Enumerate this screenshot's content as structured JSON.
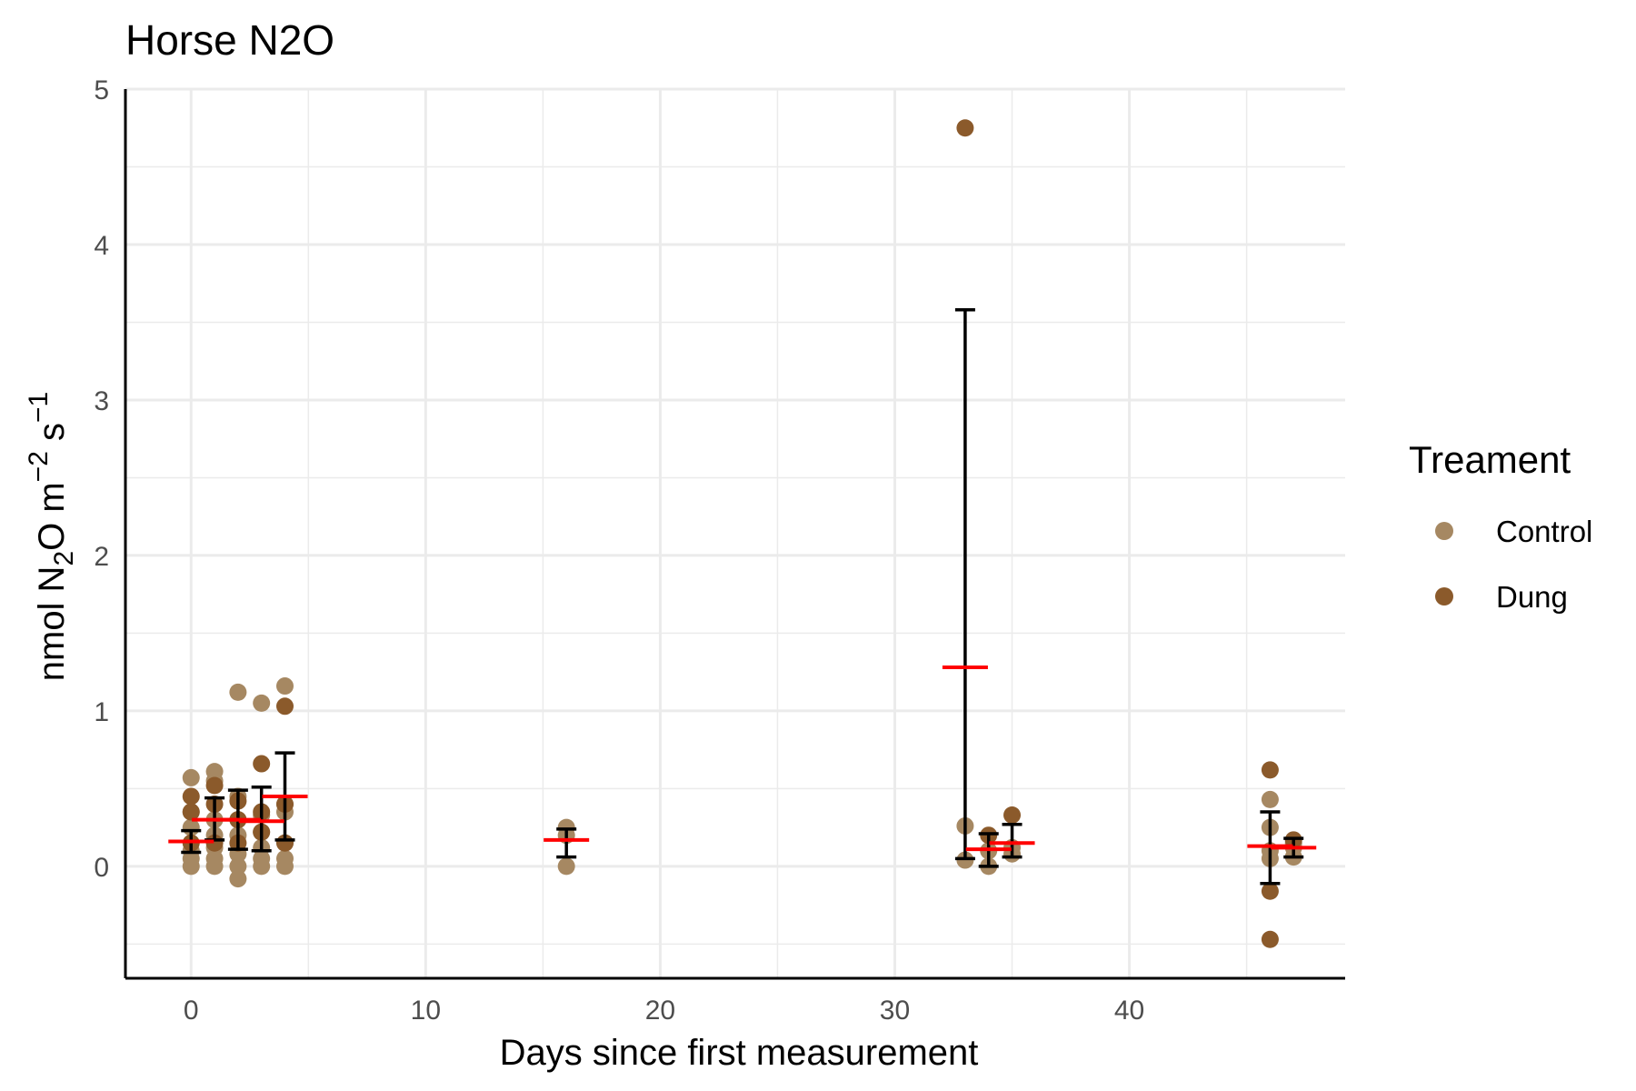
{
  "chart_data": {
    "type": "scatter",
    "title": "Horse N2O",
    "xlabel": "Days since first measurement",
    "ylabel": {
      "main": "nmol N",
      "sub": "2",
      "mid": "O m",
      "sup1": "−2",
      "mid2": " s",
      "sup2": "−1"
    },
    "xlim": [
      -2.8,
      49.2
    ],
    "ylim": [
      -0.72,
      5.0
    ],
    "x_ticks": [
      0,
      10,
      20,
      30,
      40
    ],
    "y_ticks": [
      0,
      1,
      2,
      3,
      4,
      5
    ],
    "grid": true,
    "legend": {
      "title": "Treament",
      "position": "right"
    },
    "series": [
      {
        "name": "Control",
        "color": "#a68862",
        "points": [
          [
            0,
            0.57
          ],
          [
            0,
            0.0
          ],
          [
            0,
            0.05
          ],
          [
            0,
            0.1
          ],
          [
            0,
            0.25
          ],
          [
            0,
            0.35
          ],
          [
            1,
            0.61
          ],
          [
            1,
            0.55
          ],
          [
            1,
            0.0
          ],
          [
            1,
            0.05
          ],
          [
            1,
            0.12
          ],
          [
            1,
            0.3
          ],
          [
            1,
            0.2
          ],
          [
            2,
            1.12
          ],
          [
            2,
            0.45
          ],
          [
            2,
            0.0
          ],
          [
            2,
            -0.08
          ],
          [
            2,
            0.08
          ],
          [
            2,
            0.3
          ],
          [
            2,
            0.2
          ],
          [
            3,
            1.05
          ],
          [
            3,
            0.33
          ],
          [
            3,
            0.0
          ],
          [
            3,
            0.05
          ],
          [
            3,
            0.12
          ],
          [
            3,
            0.22
          ],
          [
            4,
            1.16
          ],
          [
            4,
            0.4
          ],
          [
            4,
            0.0
          ],
          [
            4,
            0.05
          ],
          [
            4,
            0.15
          ],
          [
            4,
            0.35
          ],
          [
            16,
            0.25
          ],
          [
            16,
            0.0
          ],
          [
            16,
            0.2
          ],
          [
            33,
            0.26
          ],
          [
            33,
            0.04
          ],
          [
            34,
            0.0
          ],
          [
            34,
            0.1
          ],
          [
            35,
            0.12
          ],
          [
            35,
            0.08
          ],
          [
            46,
            0.43
          ],
          [
            46,
            0.05
          ],
          [
            46,
            0.25
          ],
          [
            46,
            0.1
          ],
          [
            47,
            0.06
          ],
          [
            47,
            0.12
          ],
          [
            47,
            0.15
          ]
        ]
      },
      {
        "name": "Dung",
        "color": "#8b5a2b",
        "points": [
          [
            0,
            0.45
          ],
          [
            0,
            0.35
          ],
          [
            0,
            0.15
          ],
          [
            1,
            0.52
          ],
          [
            1,
            0.4
          ],
          [
            1,
            0.15
          ],
          [
            2,
            0.42
          ],
          [
            2,
            0.3
          ],
          [
            2,
            0.15
          ],
          [
            3,
            0.66
          ],
          [
            3,
            0.35
          ],
          [
            3,
            0.22
          ],
          [
            4,
            1.03
          ],
          [
            4,
            0.4
          ],
          [
            4,
            0.15
          ],
          [
            33,
            4.75
          ],
          [
            34,
            0.2
          ],
          [
            35,
            0.33
          ],
          [
            46,
            0.62
          ],
          [
            46,
            -0.16
          ],
          [
            46,
            -0.47
          ],
          [
            47,
            0.17
          ]
        ]
      }
    ],
    "means": [
      {
        "x": 0,
        "mean": 0.16,
        "lo": 0.09,
        "hi": 0.23
      },
      {
        "x": 1,
        "mean": 0.3,
        "lo": 0.17,
        "hi": 0.44
      },
      {
        "x": 2,
        "mean": 0.3,
        "lo": 0.11,
        "hi": 0.49
      },
      {
        "x": 3,
        "mean": 0.29,
        "lo": 0.1,
        "hi": 0.51
      },
      {
        "x": 4,
        "mean": 0.45,
        "lo": 0.17,
        "hi": 0.73
      },
      {
        "x": 16,
        "mean": 0.17,
        "lo": 0.06,
        "hi": 0.24
      },
      {
        "x": 33,
        "mean": 1.28,
        "lo": 0.05,
        "hi": 3.58
      },
      {
        "x": 34,
        "mean": 0.11,
        "lo": 0.0,
        "hi": 0.21
      },
      {
        "x": 35,
        "mean": 0.15,
        "lo": 0.06,
        "hi": 0.27
      },
      {
        "x": 46,
        "mean": 0.13,
        "lo": -0.11,
        "hi": 0.35
      },
      {
        "x": 47,
        "mean": 0.12,
        "lo": 0.06,
        "hi": 0.18
      }
    ],
    "mean_color": "#ff0000",
    "errorbar_color": "#000000"
  }
}
